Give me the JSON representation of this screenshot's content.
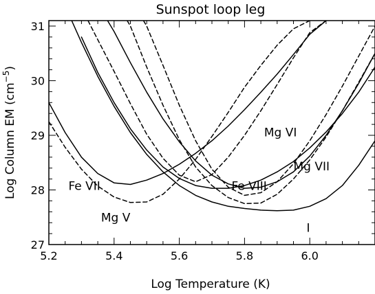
{
  "chart_data": {
    "type": "line",
    "title": "Sunspot loop leg",
    "xlabel": "Log Temperature (K)",
    "ylabel": "Log Column EM (cm⁻⁵)",
    "xlim": [
      5.2,
      6.2
    ],
    "ylim": [
      27.0,
      31.1
    ],
    "x_ticks": [
      5.2,
      5.4,
      5.6,
      5.8,
      6.0
    ],
    "y_ticks": [
      27,
      28,
      29,
      30,
      31
    ],
    "x_tick_labels": [
      "5.2",
      "5.4",
      "5.6",
      "5.8",
      "6.0"
    ],
    "y_tick_labels": [
      "27",
      "28",
      "29",
      "30",
      "31"
    ],
    "grid": false,
    "legend": "none",
    "series": [
      {
        "style": "solid",
        "x": [
          5.2,
          5.25,
          5.3,
          5.35,
          5.4,
          5.45,
          5.5,
          5.55,
          5.6,
          5.65,
          5.7,
          5.75,
          5.8,
          5.85,
          5.9,
          5.95,
          6.0,
          6.05
        ],
        "y": [
          29.6,
          29.05,
          28.6,
          28.3,
          28.13,
          28.1,
          28.18,
          28.3,
          28.47,
          28.67,
          28.9,
          29.17,
          29.47,
          29.79,
          30.12,
          30.48,
          30.85,
          31.1
        ]
      },
      {
        "style": "solid",
        "x": [
          5.3,
          5.35,
          5.4,
          5.45,
          5.5,
          5.55,
          5.6,
          5.65,
          5.7,
          5.75,
          5.8,
          5.85,
          5.9,
          5.95,
          6.0,
          6.05,
          6.1,
          6.15,
          6.2
        ],
        "y": [
          30.8,
          30.15,
          29.6,
          29.12,
          28.73,
          28.42,
          28.21,
          28.08,
          28.03,
          28.03,
          28.08,
          28.18,
          28.33,
          28.52,
          28.77,
          29.06,
          29.4,
          29.79,
          30.25
        ]
      },
      {
        "style": "solid",
        "x": [
          5.27,
          5.3,
          5.35,
          5.4,
          5.45,
          5.5,
          5.55,
          5.6,
          5.65,
          5.7,
          5.75,
          5.8,
          5.85,
          5.9,
          5.95,
          6.0,
          6.05,
          6.1,
          6.15,
          6.2
        ],
        "y": [
          31.1,
          30.7,
          30.08,
          29.53,
          29.05,
          28.65,
          28.33,
          28.08,
          27.9,
          27.78,
          27.7,
          27.66,
          27.63,
          27.62,
          27.63,
          27.7,
          27.84,
          28.08,
          28.45,
          28.9
        ]
      },
      {
        "style": "solid",
        "x": [
          5.38,
          5.4,
          5.45,
          5.5,
          5.55,
          5.6,
          5.65,
          5.7,
          5.75,
          5.8,
          5.85,
          5.9,
          5.95,
          6.0,
          6.05,
          6.1,
          6.15,
          6.2
        ],
        "y": [
          31.1,
          30.9,
          30.33,
          29.79,
          29.3,
          28.88,
          28.53,
          28.27,
          28.11,
          28.03,
          28.05,
          28.15,
          28.33,
          28.62,
          29.0,
          29.45,
          29.95,
          30.5
        ]
      },
      {
        "style": "dashed",
        "x": [
          5.2,
          5.25,
          5.3,
          5.35,
          5.4,
          5.45,
          5.5,
          5.55,
          5.6,
          5.65,
          5.7,
          5.75,
          5.8,
          5.85,
          5.9,
          5.95,
          6.0
        ],
        "y": [
          29.25,
          28.78,
          28.38,
          28.07,
          27.87,
          27.77,
          27.78,
          27.92,
          28.2,
          28.56,
          28.98,
          29.42,
          29.88,
          30.28,
          30.65,
          30.95,
          31.1
        ]
      },
      {
        "style": "dashed",
        "x": [
          5.32,
          5.35,
          5.4,
          5.45,
          5.5,
          5.55,
          5.6,
          5.65,
          5.7,
          5.75,
          5.8,
          5.85,
          5.9,
          5.95,
          6.0,
          6.05
        ],
        "y": [
          31.1,
          30.75,
          30.17,
          29.58,
          29.02,
          28.58,
          28.27,
          28.15,
          28.28,
          28.6,
          29.0,
          29.45,
          29.93,
          30.42,
          30.88,
          31.1
        ]
      },
      {
        "style": "dashed",
        "x": [
          5.44,
          5.45,
          5.5,
          5.55,
          5.6,
          5.65,
          5.7,
          5.75,
          5.8,
          5.85,
          5.9,
          5.95,
          6.0,
          6.05,
          6.1,
          6.15,
          6.2
        ],
        "y": [
          31.1,
          31.0,
          30.25,
          29.55,
          28.92,
          28.42,
          28.08,
          27.86,
          27.75,
          27.76,
          27.92,
          28.2,
          28.55,
          28.97,
          29.45,
          29.97,
          30.5
        ]
      },
      {
        "style": "dashed",
        "x": [
          5.49,
          5.5,
          5.55,
          5.6,
          5.65,
          5.7,
          5.75,
          5.8,
          5.85,
          5.9,
          5.95,
          6.0,
          6.05,
          6.1,
          6.15,
          6.2
        ],
        "y": [
          31.1,
          31.0,
          30.28,
          29.55,
          28.9,
          28.38,
          28.05,
          27.9,
          27.95,
          28.15,
          28.48,
          28.9,
          29.38,
          29.9,
          30.45,
          31.0
        ]
      }
    ],
    "annotations": [
      {
        "text": "Fe VII",
        "x": 5.26,
        "y": 28.0
      },
      {
        "text": "Mg V",
        "x": 5.36,
        "y": 27.42
      },
      {
        "text": "Fe VIII",
        "x": 5.76,
        "y": 28.0
      },
      {
        "text": "Mg VI",
        "x": 5.86,
        "y": 28.98
      },
      {
        "text": "Mg VII",
        "x": 5.95,
        "y": 28.36
      },
      {
        "text": "I",
        "x": 5.99,
        "y": 27.23
      }
    ]
  }
}
